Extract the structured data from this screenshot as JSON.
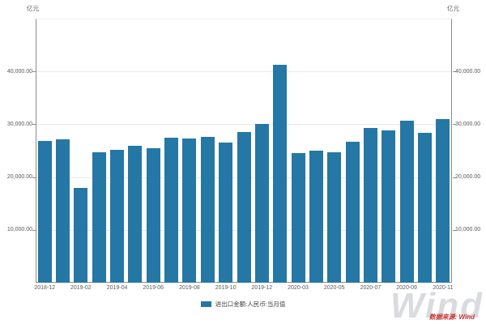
{
  "colors": {
    "bar": "#2577a5",
    "grid": "#e9e9e9",
    "axis": "#8c8c8c",
    "tick_text": "#595959",
    "watermark_gray": "#b9bec3",
    "source_red": "#cc3333"
  },
  "unit_label_left": "亿元",
  "unit_label_right": "亿元",
  "legend": {
    "label": "进出口金额:人民币:当月值",
    "swatch_color": "#2577a5"
  },
  "watermark": {
    "text": "Wind"
  },
  "source": {
    "text": "数据来源: Wind"
  },
  "chart_data": {
    "type": "bar",
    "title": "",
    "xlabel": "",
    "ylabel": "亿元",
    "grid": true,
    "legend_position": "bottom",
    "ylim": [
      0,
      50000
    ],
    "yticks": [
      10000,
      20000,
      30000,
      40000
    ],
    "ytick_labels": [
      "10,000.00",
      "20,000.00",
      "30,000.00",
      "40,000.00"
    ],
    "categories": [
      "2018-12",
      "2019-01",
      "2019-02",
      "2019-03",
      "2019-04",
      "2019-05",
      "2019-06",
      "2019-07",
      "2019-08",
      "2019-09",
      "2019-10",
      "2019-11",
      "2019-12",
      "2020-02",
      "2020-03",
      "2020-04",
      "2020-05",
      "2020-06",
      "2020-07",
      "2020-08",
      "2020-09",
      "2020-10",
      "2020-11"
    ],
    "series": [
      {
        "name": "进出口金额:人民币:当月值",
        "color": "#2577a5",
        "values": [
          26905,
          27096,
          17932,
          24626,
          25163,
          25902,
          25460,
          27399,
          27316,
          27626,
          26469,
          28604,
          30106,
          41238,
          24548,
          24994,
          24696,
          26726,
          29275,
          28835,
          30663,
          28370,
          30920
        ]
      }
    ],
    "x_tick_labels": [
      "2018-12",
      "2019-02",
      "2019-04",
      "2019-06",
      "2019-08",
      "2019-10",
      "2019-12",
      "2020-03",
      "2020-05",
      "2020-07",
      "2020-09",
      "2020-11"
    ]
  }
}
